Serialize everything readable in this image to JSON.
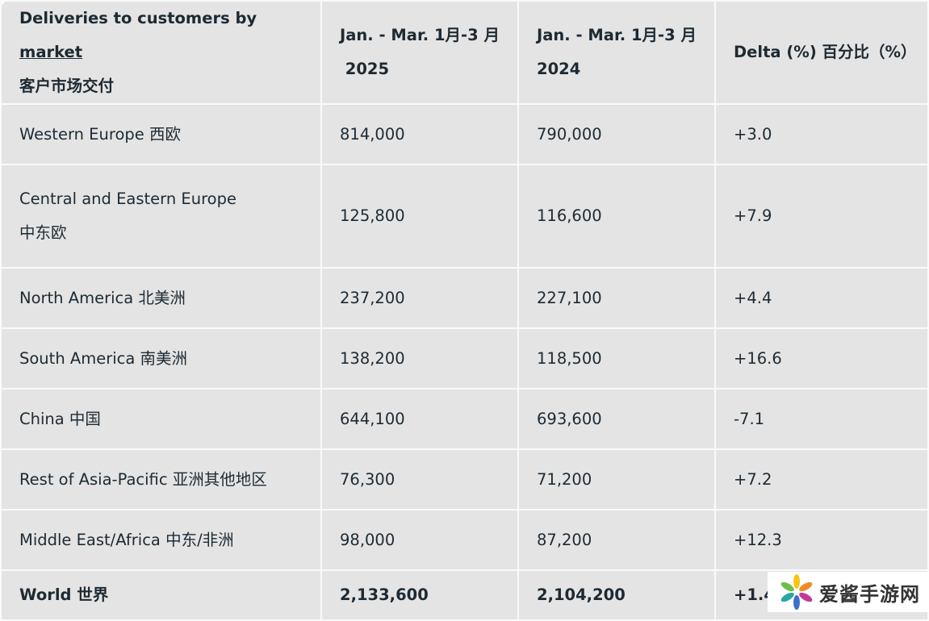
{
  "header": {
    "market_pre": "Deliveries to customers by ",
    "market_link": "market",
    "market_cn": "客户市场交付",
    "col2025": "Jan. - Mar. 1月-3 月",
    "col2025_year": "2025",
    "col2024": "Jan. - Mar. 1月-3 月",
    "col2024_year": "2024",
    "delta": "Delta (%) 百分比（%）"
  },
  "rows": [
    {
      "market": "Western Europe  西欧",
      "y2025": "814,000",
      "y2024": "790,000",
      "delta": "+3.0"
    },
    {
      "market": "Central and Eastern Europe",
      "market_cn": "中东欧",
      "y2025": "125,800",
      "y2024": "116,600",
      "delta": "+7.9"
    },
    {
      "market": "North America  北美洲",
      "y2025": "237,200",
      "y2024": "227,100",
      "delta": "+4.4"
    },
    {
      "market": "South America  南美洲",
      "y2025": "138,200",
      "y2024": "118,500",
      "delta": "+16.6"
    },
    {
      "market": "China  中国",
      "y2025": "644,100",
      "y2024": "693,600",
      "delta": "-7.1"
    },
    {
      "market": "Rest of Asia-Pacific  亚洲其他地区",
      "y2025": "76,300",
      "y2024": "71,200",
      "delta": "+7.2"
    },
    {
      "market": "Middle East/Africa  中东/非洲",
      "y2025": "98,000",
      "y2024": "87,200",
      "delta": "+12.3"
    },
    {
      "market": "World  世界",
      "y2025": "2,133,600",
      "y2024": "2,104,200",
      "delta": "+1.4"
    }
  ],
  "watermark": {
    "text": "爱酱手游网",
    "icon": "flower-logo-icon"
  }
}
